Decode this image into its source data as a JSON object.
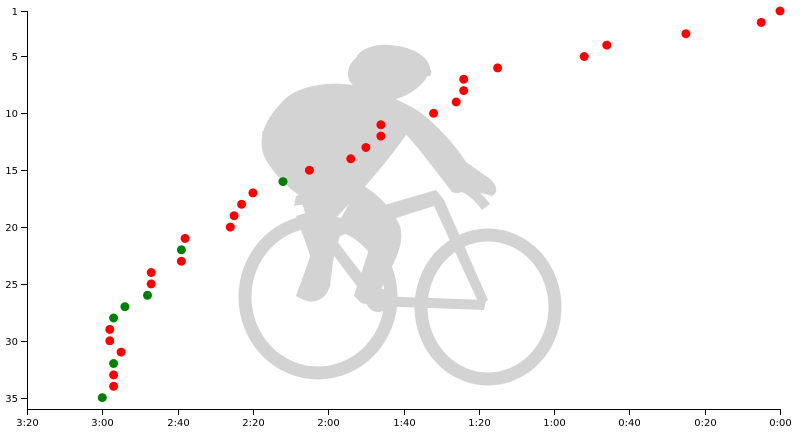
{
  "chart_data": {
    "type": "scatter",
    "title": "",
    "xlabel": "",
    "ylabel": "",
    "x_axis": {
      "unit": "minutes:seconds behind fastest",
      "domain": [
        "3:20",
        "0:00"
      ],
      "reversed": true,
      "ticks": [
        "3:20",
        "3:00",
        "2:40",
        "2:20",
        "2:00",
        "1:40",
        "1:20",
        "1:00",
        "0:40",
        "0:20",
        "0:00"
      ]
    },
    "y_axis": {
      "unit": "place",
      "domain": [
        1,
        36
      ],
      "reversed": true,
      "ticks": [
        "1",
        "5",
        "10",
        "15",
        "20",
        "25",
        "30",
        "35"
      ]
    },
    "colors": {
      "red": "#ff0000",
      "green": "#008000",
      "watermark": "#d3d3d3"
    },
    "legend": "none",
    "grid": false,
    "background_icon": "cyclist-icon",
    "points": [
      {
        "place": 1,
        "behind": "0:00",
        "color": "red"
      },
      {
        "place": 2,
        "behind": "0:05",
        "color": "red"
      },
      {
        "place": 3,
        "behind": "0:25",
        "color": "red"
      },
      {
        "place": 4,
        "behind": "0:46",
        "color": "red"
      },
      {
        "place": 5,
        "behind": "0:52",
        "color": "red"
      },
      {
        "place": 6,
        "behind": "1:15",
        "color": "red"
      },
      {
        "place": 7,
        "behind": "1:24",
        "color": "red"
      },
      {
        "place": 8,
        "behind": "1:24",
        "color": "red"
      },
      {
        "place": 9,
        "behind": "1:26",
        "color": "red"
      },
      {
        "place": 10,
        "behind": "1:32",
        "color": "red"
      },
      {
        "place": 11,
        "behind": "1:46",
        "color": "red"
      },
      {
        "place": 12,
        "behind": "1:46",
        "color": "red"
      },
      {
        "place": 13,
        "behind": "1:50",
        "color": "red"
      },
      {
        "place": 14,
        "behind": "1:54",
        "color": "red"
      },
      {
        "place": 15,
        "behind": "2:05",
        "color": "red"
      },
      {
        "place": 16,
        "behind": "2:12",
        "color": "green"
      },
      {
        "place": 17,
        "behind": "2:20",
        "color": "red"
      },
      {
        "place": 18,
        "behind": "2:23",
        "color": "red"
      },
      {
        "place": 19,
        "behind": "2:25",
        "color": "red"
      },
      {
        "place": 20,
        "behind": "2:26",
        "color": "red"
      },
      {
        "place": 21,
        "behind": "2:38",
        "color": "red"
      },
      {
        "place": 22,
        "behind": "2:39",
        "color": "green"
      },
      {
        "place": 23,
        "behind": "2:39",
        "color": "red"
      },
      {
        "place": 24,
        "behind": "2:47",
        "color": "red"
      },
      {
        "place": 25,
        "behind": "2:47",
        "color": "red"
      },
      {
        "place": 26,
        "behind": "2:48",
        "color": "green"
      },
      {
        "place": 27,
        "behind": "2:54",
        "color": "green"
      },
      {
        "place": 28,
        "behind": "2:57",
        "color": "green"
      },
      {
        "place": 29,
        "behind": "2:58",
        "color": "red"
      },
      {
        "place": 30,
        "behind": "2:58",
        "color": "red"
      },
      {
        "place": 31,
        "behind": "2:55",
        "color": "red"
      },
      {
        "place": 32,
        "behind": "2:57",
        "color": "green"
      },
      {
        "place": 33,
        "behind": "2:57",
        "color": "red"
      },
      {
        "place": 34,
        "behind": "2:57",
        "color": "red"
      },
      {
        "place": 35,
        "behind": "3:00",
        "color": "green"
      }
    ]
  }
}
